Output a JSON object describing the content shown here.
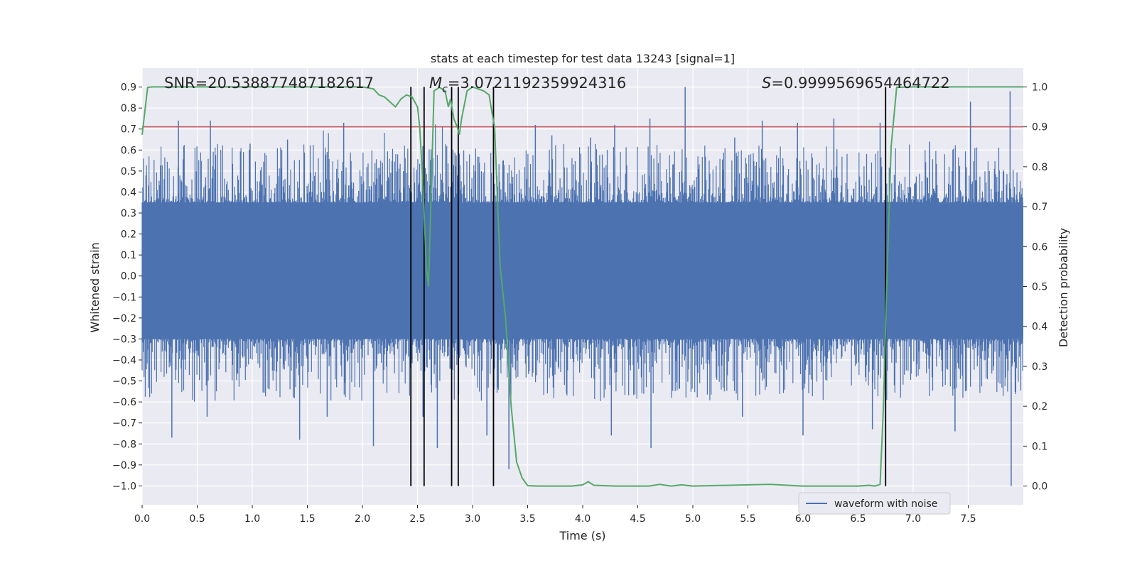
{
  "chart_data": {
    "type": "line",
    "title": "stats at each timestep for test data 13243 [signal=1]",
    "xlabel": "Time (s)",
    "ylabel": "Whitened strain",
    "y2label": "Detection probability",
    "xlim": [
      0.0,
      8.0
    ],
    "ylim": [
      -1.09,
      0.99
    ],
    "y2lim": [
      -0.047,
      1.047
    ],
    "x_ticks": [
      "0.0",
      "0.5",
      "1.0",
      "1.5",
      "2.0",
      "2.5",
      "3.0",
      "3.5",
      "4.0",
      "4.5",
      "5.0",
      "5.5",
      "6.0",
      "6.5",
      "7.0",
      "7.5"
    ],
    "y_ticks": [
      "−1.0",
      "−0.9",
      "−0.8",
      "−0.7",
      "−0.6",
      "−0.5",
      "−0.4",
      "−0.3",
      "−0.2",
      "−0.1",
      "0.0",
      "0.1",
      "0.2",
      "0.3",
      "0.4",
      "0.5",
      "0.6",
      "0.7",
      "0.8",
      "0.9"
    ],
    "y2_ticks": [
      "0.0",
      "0.1",
      "0.2",
      "0.3",
      "0.4",
      "0.5",
      "0.6",
      "0.7",
      "0.8",
      "0.9",
      "1.0"
    ],
    "grid": true,
    "legend_placement": "lower-right",
    "annotations": {
      "snr": "SNR=20.538877487182617",
      "mc_symbol": "M",
      "mc_subscript": "c",
      "mc_value": "=3.0721192359924316",
      "s_symbol": "S",
      "s_value": "=0.9999569654464722"
    },
    "threshold": 0.9,
    "vlines": [
      2.44,
      2.56,
      2.81,
      2.87,
      3.19,
      6.75
    ],
    "series": [
      {
        "name": "waveform with noise",
        "color": "#4c72b0",
        "kind": "noise-envelope",
        "typical_range": [
          -0.3,
          0.35
        ],
        "peaks_high": [
          [
            0.33,
            0.74
          ],
          [
            0.62,
            0.74
          ],
          [
            0.98,
            0.63
          ],
          [
            1.32,
            0.65
          ],
          [
            1.83,
            0.73
          ],
          [
            2.62,
            0.53
          ],
          [
            3.57,
            0.72
          ],
          [
            3.72,
            0.67
          ],
          [
            4.07,
            0.66
          ],
          [
            4.29,
            0.72
          ],
          [
            4.61,
            0.75
          ],
          [
            4.93,
            0.9
          ],
          [
            5.38,
            0.66
          ],
          [
            5.63,
            0.74
          ],
          [
            5.95,
            0.73
          ],
          [
            6.28,
            0.75
          ],
          [
            6.7,
            0.73
          ],
          [
            7.15,
            0.64
          ],
          [
            7.52,
            0.83
          ],
          [
            7.88,
            0.88
          ]
        ],
        "peaks_low": [
          [
            0.27,
            -0.77
          ],
          [
            0.59,
            -0.67
          ],
          [
            1.43,
            -0.78
          ],
          [
            1.68,
            -0.67
          ],
          [
            2.1,
            -0.81
          ],
          [
            2.55,
            -0.67
          ],
          [
            2.68,
            -0.82
          ],
          [
            3.13,
            -0.76
          ],
          [
            3.33,
            -0.92
          ],
          [
            4.26,
            -0.76
          ],
          [
            4.62,
            -0.82
          ],
          [
            5.45,
            -0.67
          ],
          [
            6.0,
            -0.76
          ],
          [
            6.63,
            -0.73
          ],
          [
            7.38,
            -0.74
          ],
          [
            7.89,
            -1.0
          ]
        ]
      },
      {
        "name": "",
        "color": "#55a868",
        "axis": "right",
        "x": [
          0.0,
          0.05,
          0.1,
          0.5,
          1.0,
          1.5,
          2.0,
          2.1,
          2.15,
          2.2,
          2.3,
          2.35,
          2.4,
          2.45,
          2.5,
          2.52,
          2.55,
          2.58,
          2.6,
          2.65,
          2.7,
          2.75,
          2.78,
          2.8,
          2.83,
          2.86,
          2.88,
          2.9,
          2.95,
          3.0,
          3.1,
          3.15,
          3.18,
          3.2,
          3.25,
          3.3,
          3.35,
          3.4,
          3.45,
          3.5,
          3.6,
          3.9,
          4.0,
          4.05,
          4.1,
          4.3,
          4.6,
          4.7,
          4.8,
          4.9,
          5.0,
          5.5,
          5.7,
          6.0,
          6.5,
          6.6,
          6.65,
          6.7,
          6.73,
          6.76,
          6.8,
          6.85,
          7.0,
          7.3,
          8.0
        ],
        "y": [
          0.88,
          0.999,
          1.0,
          1.0,
          1.0,
          1.0,
          1.0,
          0.995,
          0.98,
          0.975,
          0.95,
          0.97,
          0.98,
          0.975,
          0.95,
          0.9,
          0.75,
          0.55,
          0.5,
          0.99,
          0.999,
          0.99,
          0.95,
          0.97,
          0.92,
          0.9,
          0.88,
          0.92,
          0.99,
          1.0,
          0.99,
          0.98,
          0.93,
          0.9,
          0.55,
          0.42,
          0.2,
          0.06,
          0.02,
          0.001,
          0.0,
          0.0,
          0.003,
          0.011,
          0.002,
          0.0,
          0.0,
          0.004,
          0.0,
          0.003,
          0.0,
          0.003,
          0.004,
          0.0,
          0.0,
          0.002,
          0.0,
          0.004,
          0.2,
          0.5,
          0.85,
          0.999,
          1.0,
          1.0,
          1.0
        ]
      }
    ]
  }
}
